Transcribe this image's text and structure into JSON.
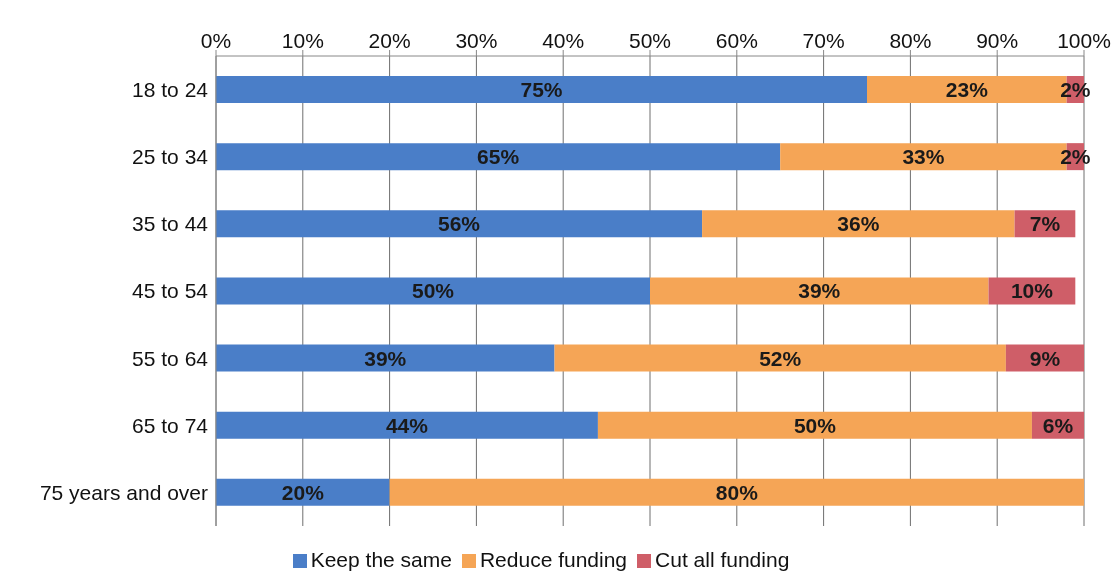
{
  "chart_data": {
    "type": "bar",
    "orientation": "horizontal",
    "stacked": true,
    "categories": [
      "18 to 24",
      "25 to 34",
      "35 to 44",
      "45 to 54",
      "55 to 64",
      "65 to 74",
      "75 years and over"
    ],
    "series": [
      {
        "name": "Keep the same",
        "color": "#4a7ec8",
        "values": [
          75,
          65,
          56,
          50,
          39,
          44,
          20
        ],
        "value_labels": [
          "75%",
          "65%",
          "56%",
          "50%",
          "39%",
          "44%",
          "20%"
        ]
      },
      {
        "name": "Reduce funding",
        "color": "#f5a556",
        "values": [
          23,
          33,
          36,
          39,
          52,
          50,
          80
        ],
        "value_labels": [
          "23%",
          "33%",
          "36%",
          "39%",
          "52%",
          "50%",
          "80%"
        ]
      },
      {
        "name": "Cut all funding",
        "color": "#cf5e68",
        "values": [
          2,
          2,
          7,
          10,
          9,
          6,
          null
        ],
        "value_labels": [
          "2%",
          "2%",
          "7%",
          "10%",
          "9%",
          "6%",
          null
        ]
      }
    ],
    "xlim": [
      0,
      100
    ],
    "xticks": [
      {
        "value": 0,
        "label": "0%"
      },
      {
        "value": 10,
        "label": "10%"
      },
      {
        "value": 20,
        "label": "20%"
      },
      {
        "value": 30,
        "label": "30%"
      },
      {
        "value": 40,
        "label": "40%"
      },
      {
        "value": 50,
        "label": "50%"
      },
      {
        "value": 60,
        "label": "60%"
      },
      {
        "value": 70,
        "label": "70%"
      },
      {
        "value": 80,
        "label": "80%"
      },
      {
        "value": 90,
        "label": "90%"
      },
      {
        "value": 100,
        "label": "100%"
      }
    ],
    "grid": "x",
    "legend": "bottom"
  }
}
